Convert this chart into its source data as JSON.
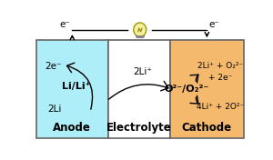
{
  "anode_color": "#aeeef8",
  "cathode_color": "#f5b96e",
  "electrolyte_color": "#ffffff",
  "border_color": "#666666",
  "background_color": "#ffffff",
  "anode_label": "Anode",
  "electrolyte_label": "Electrolyte",
  "cathode_label": "Cathode",
  "li_lipp_label": "Li/Li⁺",
  "anode_top_text": "2e⁻",
  "anode_bot_text": "2Li",
  "electrolyte_arrow_text": "2Li⁺",
  "cathode_center_text": "O²⁻/O₂²⁻",
  "cathode_top_line1": "2Li⁺ + O₂²⁻",
  "cathode_top_line2": "+ 2e⁻",
  "cathode_bot_text": "4Li⁺ + 2O²⁻",
  "elec_left_label": "e⁻",
  "elec_right_label": "e⁻",
  "fig_w": 3.0,
  "fig_h": 1.76,
  "dpi": 100
}
